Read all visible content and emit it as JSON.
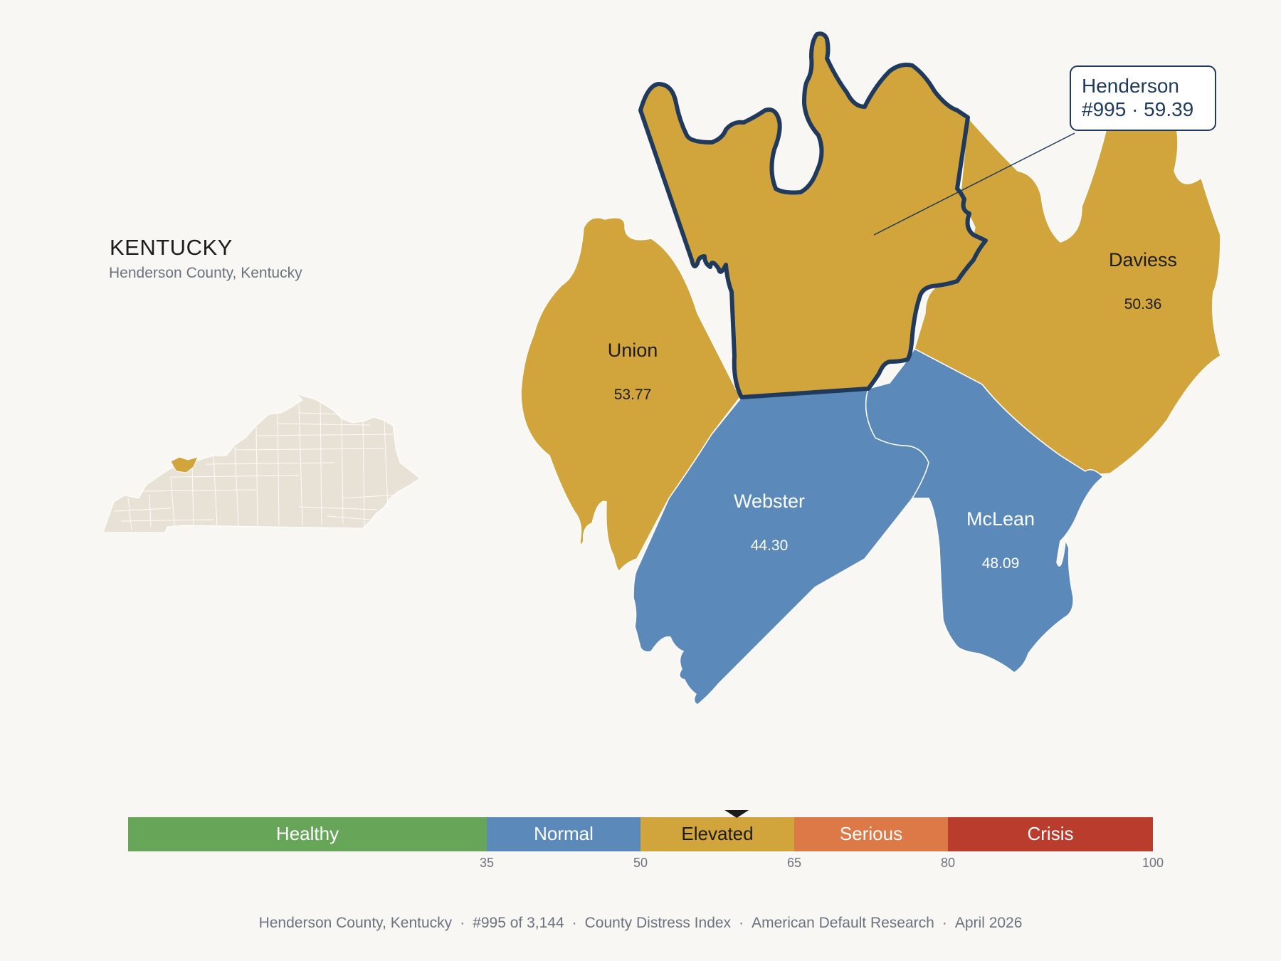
{
  "inset": {
    "state_label": "KENTUCKY",
    "subtitle": "Henderson County, Kentucky"
  },
  "map": {
    "highlighted": {
      "name": "Henderson",
      "callout_line1": "Henderson",
      "callout_line2": "#995 · 59.39",
      "score": 59.39,
      "category": "Elevated"
    },
    "neighbors": [
      {
        "id": "union",
        "name": "Union",
        "score_label": "53.77",
        "score": 53.77,
        "category": "Elevated"
      },
      {
        "id": "daviess",
        "name": "Daviess",
        "score_label": "50.36",
        "score": 50.36,
        "category": "Elevated"
      },
      {
        "id": "webster",
        "name": "Webster",
        "score_label": "44.30",
        "score": 44.3,
        "category": "Normal"
      },
      {
        "id": "mclean",
        "name": "McLean",
        "score_label": "48.09",
        "score": 48.09,
        "category": "Normal"
      }
    ]
  },
  "legend": {
    "min": 0,
    "max": 100,
    "marker_value": 59.39,
    "bands": [
      {
        "label": "Healthy",
        "from": 0,
        "to": 35,
        "color": "#67a658",
        "text_color": "#ffffff"
      },
      {
        "label": "Normal",
        "from": 35,
        "to": 50,
        "color": "#5b8aba",
        "text_color": "#ffffff"
      },
      {
        "label": "Elevated",
        "from": 50,
        "to": 65,
        "color": "#d2a43c",
        "text_color": "#1c1c1c"
      },
      {
        "label": "Serious",
        "from": 65,
        "to": 80,
        "color": "#dd7847",
        "text_color": "#ffffff"
      },
      {
        "label": "Crisis",
        "from": 80,
        "to": 100,
        "color": "#b93c2c",
        "text_color": "#ffffff"
      }
    ],
    "tick_labels": [
      "35",
      "50",
      "65",
      "80",
      "100"
    ]
  },
  "footer": {
    "county": "Henderson County, Kentucky",
    "rank": "#995 of 3,144",
    "index": "County Distress Index",
    "source": "American Default Research",
    "date": "April 2026"
  },
  "colors": {
    "elevated": "#d2a43c",
    "normal": "#5b8aba",
    "outline": "#1f3a5c",
    "inset_fill": "#e7e1d6"
  }
}
